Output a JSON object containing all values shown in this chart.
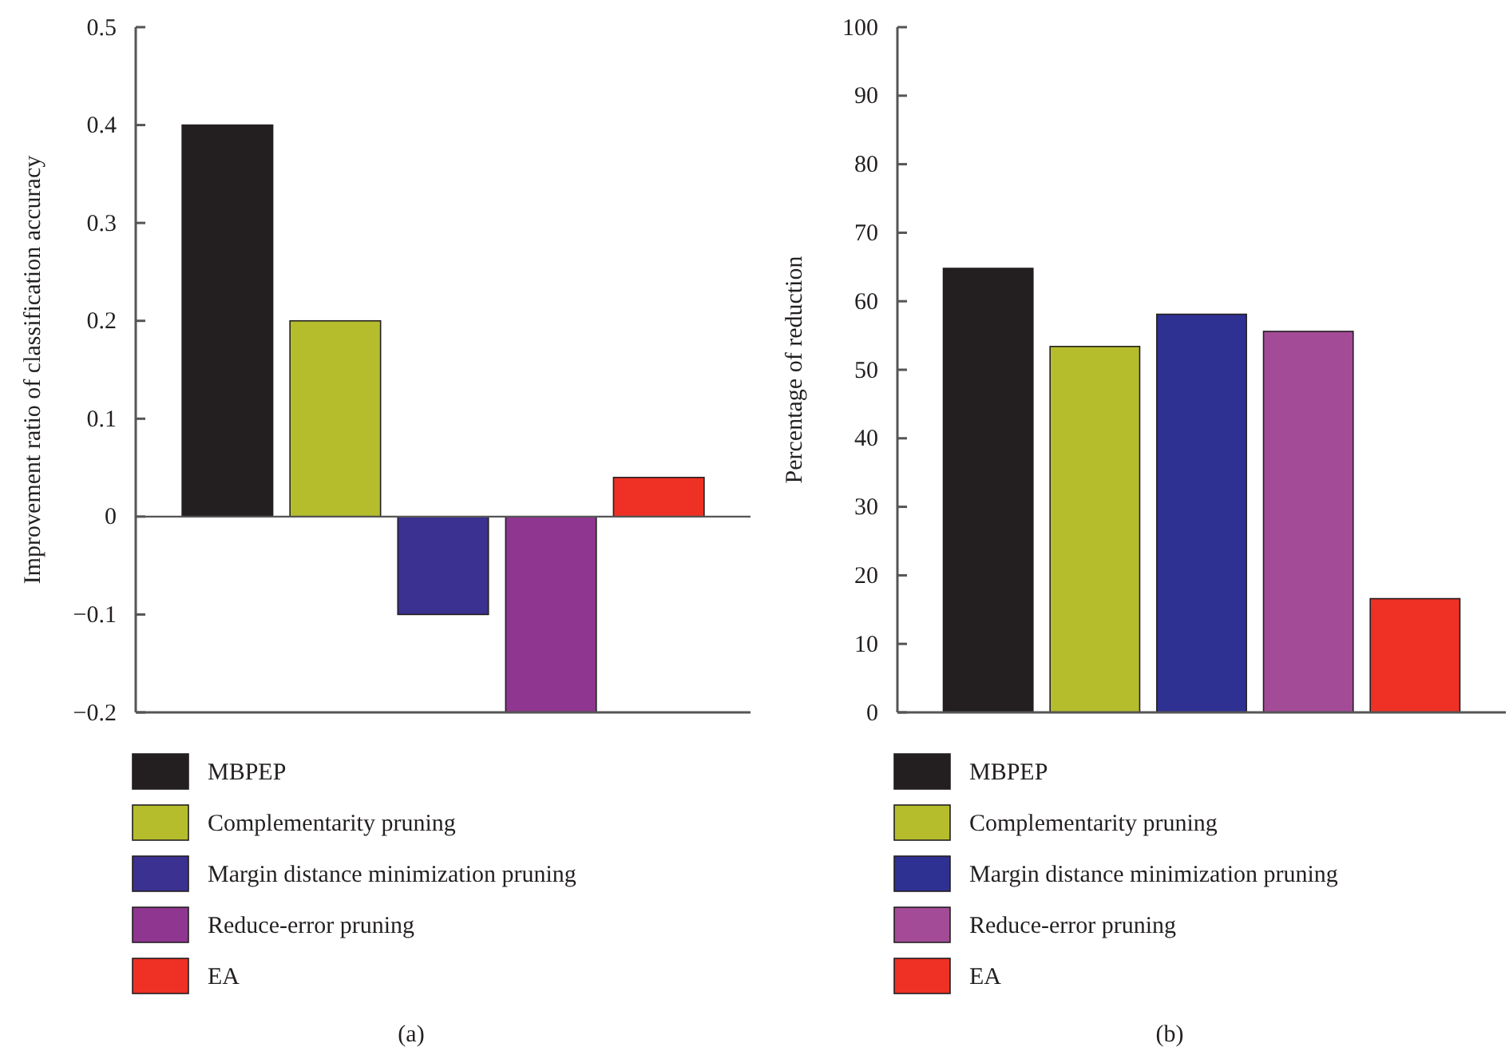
{
  "chart_data": [
    {
      "type": "bar",
      "ylabel": "Improvement ratio of classification accuracy",
      "categories": [
        null
      ],
      "ylim": [
        -0.2,
        0.5
      ],
      "yticks": [
        {
          "value": -0.2,
          "label": "−0.2"
        },
        {
          "value": -0.1,
          "label": "−0.1"
        },
        0,
        0.1,
        0.2,
        0.3,
        0.4,
        0.5
      ],
      "legend": "bottom",
      "annotations": [
        "(a)"
      ],
      "series": [
        {
          "name": "MBPEP",
          "color": "#231f20",
          "values": [
            0.4
          ]
        },
        {
          "name": "Complementarity pruning",
          "color": "#b5bd2d",
          "values": [
            0.2
          ]
        },
        {
          "name": "Margin distance minimization pruning",
          "color": "#3b3190",
          "values": [
            -0.1
          ]
        },
        {
          "name": "Reduce-error pruning",
          "color": "#8e3690",
          "values": [
            -0.2
          ]
        },
        {
          "name": "EA",
          "color": "#ee3124",
          "values": [
            0.04
          ]
        }
      ]
    },
    {
      "type": "bar",
      "ylabel": "Percentage of reduction",
      "categories": [
        null
      ],
      "ylim": [
        0,
        100
      ],
      "yticks": [
        0,
        10,
        20,
        30,
        40,
        50,
        60,
        70,
        80,
        90,
        100
      ],
      "legend": "bottom",
      "annotations": [
        "(b)"
      ],
      "series": [
        {
          "name": "MBPEP",
          "color": "#231f20",
          "values": [
            64.8
          ]
        },
        {
          "name": "Complementarity pruning",
          "color": "#b5bd2d",
          "values": [
            53.4
          ]
        },
        {
          "name": "Margin distance minimization pruning",
          "color": "#2e3192",
          "values": [
            58.1
          ]
        },
        {
          "name": "Reduce-error pruning",
          "color": "#a44b98",
          "values": [
            55.6
          ]
        },
        {
          "name": "EA",
          "color": "#ee3124",
          "values": [
            16.6
          ]
        }
      ]
    }
  ]
}
